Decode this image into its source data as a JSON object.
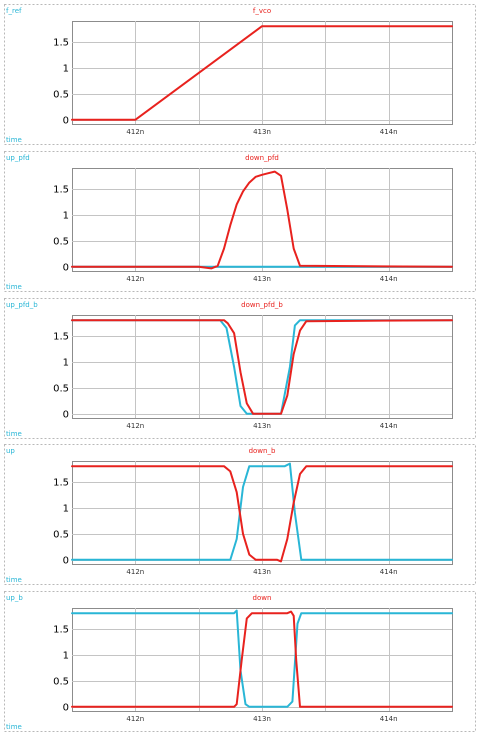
{
  "colors": {
    "cyan": "#29b6d6",
    "red": "#e8221e"
  },
  "chart_data": [
    {
      "type": "line",
      "left_label": "f_ref",
      "right_label": "f_vco",
      "xlabel": "time",
      "xlim": [
        411.5,
        414.5
      ],
      "ylim": [
        -0.08,
        1.9
      ],
      "xticks": [
        412,
        413,
        414
      ],
      "xtick_labels": [
        "412n",
        "413n",
        "414n"
      ],
      "yticks": [
        0,
        0.5,
        1,
        1.5
      ],
      "ytick_labels": [
        "0",
        "0.5",
        "1",
        "1.5"
      ],
      "series": [
        {
          "color": "#e8221e",
          "x": [
            411.5,
            412.0,
            413.0,
            414.5
          ],
          "y": [
            0,
            0,
            1.8,
            1.8
          ]
        }
      ]
    },
    {
      "type": "line",
      "left_label": "up_pfd",
      "right_label": "down_pfd",
      "xlabel": "time",
      "xlim": [
        411.5,
        414.5
      ],
      "ylim": [
        -0.08,
        1.9
      ],
      "xticks": [
        412,
        413,
        414
      ],
      "xtick_labels": [
        "412n",
        "413n",
        "414n"
      ],
      "yticks": [
        0,
        0.5,
        1,
        1.5
      ],
      "ytick_labels": [
        "0",
        "0.5",
        "1",
        "1.5"
      ],
      "series": [
        {
          "color": "#29b6d6",
          "x": [
            411.5,
            414.5
          ],
          "y": [
            0,
            0
          ]
        },
        {
          "color": "#e8221e",
          "x": [
            411.5,
            412.5,
            412.6,
            412.65,
            412.7,
            412.75,
            412.8,
            412.85,
            412.9,
            412.95,
            413.0,
            413.05,
            413.1,
            413.15,
            413.2,
            413.25,
            413.3,
            414.5
          ],
          "y": [
            0,
            0,
            -0.03,
            0.02,
            0.35,
            0.8,
            1.2,
            1.45,
            1.62,
            1.73,
            1.77,
            1.8,
            1.83,
            1.75,
            1.1,
            0.35,
            0.02,
            0
          ]
        }
      ]
    },
    {
      "type": "line",
      "left_label": "up_pfd_b",
      "right_label": "down_pfd_b",
      "xlabel": "time",
      "xlim": [
        411.5,
        414.5
      ],
      "ylim": [
        -0.08,
        1.9
      ],
      "xticks": [
        412,
        413,
        414
      ],
      "xtick_labels": [
        "412n",
        "413n",
        "414n"
      ],
      "yticks": [
        0,
        0.5,
        1,
        1.5
      ],
      "ytick_labels": [
        "0",
        "0.5",
        "1",
        "1.5"
      ],
      "series": [
        {
          "color": "#29b6d6",
          "x": [
            411.5,
            412.67,
            412.72,
            412.78,
            412.83,
            412.88,
            413.15,
            413.22,
            413.26,
            413.3,
            414.5
          ],
          "y": [
            1.8,
            1.8,
            1.65,
            0.9,
            0.15,
            0,
            0,
            0.9,
            1.7,
            1.8,
            1.8
          ]
        },
        {
          "color": "#e8221e",
          "x": [
            411.5,
            412.7,
            412.73,
            412.78,
            412.83,
            412.88,
            412.93,
            413.15,
            413.2,
            413.25,
            413.3,
            413.35,
            414.5
          ],
          "y": [
            1.8,
            1.8,
            1.74,
            1.55,
            0.8,
            0.2,
            0,
            0,
            0.35,
            1.15,
            1.6,
            1.78,
            1.8
          ]
        }
      ]
    },
    {
      "type": "line",
      "left_label": "up",
      "right_label": "down_b",
      "xlabel": "time",
      "xlim": [
        411.5,
        414.5
      ],
      "ylim": [
        -0.08,
        1.9
      ],
      "xticks": [
        412,
        413,
        414
      ],
      "xtick_labels": [
        "412n",
        "413n",
        "414n"
      ],
      "yticks": [
        0,
        0.5,
        1,
        1.5
      ],
      "ytick_labels": [
        "0",
        "0.5",
        "1",
        "1.5"
      ],
      "series": [
        {
          "color": "#29b6d6",
          "x": [
            411.5,
            412.75,
            412.8,
            412.85,
            412.9,
            412.95,
            413.18,
            413.22,
            413.26,
            413.31,
            414.5
          ],
          "y": [
            0,
            0,
            0.4,
            1.4,
            1.8,
            1.8,
            1.8,
            1.85,
            0.9,
            0,
            0
          ]
        },
        {
          "color": "#e8221e",
          "x": [
            411.5,
            412.7,
            412.75,
            412.8,
            412.85,
            412.9,
            412.95,
            413.12,
            413.15,
            413.2,
            413.25,
            413.3,
            413.35,
            414.5
          ],
          "y": [
            1.8,
            1.8,
            1.7,
            1.3,
            0.5,
            0.1,
            0,
            0,
            -0.03,
            0.4,
            1.1,
            1.65,
            1.8,
            1.8
          ]
        }
      ]
    },
    {
      "type": "line",
      "left_label": "up_b",
      "right_label": "down",
      "xlabel": "time",
      "xlim": [
        411.5,
        414.5
      ],
      "ylim": [
        -0.08,
        1.9
      ],
      "xticks": [
        412,
        413,
        414
      ],
      "xtick_labels": [
        "412n",
        "413n",
        "414n"
      ],
      "yticks": [
        0,
        0.5,
        1,
        1.5
      ],
      "ytick_labels": [
        "0",
        "0.5",
        "1",
        "1.5"
      ],
      "series": [
        {
          "color": "#29b6d6",
          "x": [
            411.5,
            412.78,
            412.8,
            412.83,
            412.87,
            412.9,
            413.2,
            413.24,
            413.28,
            413.31,
            414.5
          ],
          "y": [
            1.8,
            1.8,
            1.85,
            0.7,
            0.05,
            0,
            0,
            0.1,
            1.6,
            1.8,
            1.8
          ]
        },
        {
          "color": "#e8221e",
          "x": [
            411.5,
            412.78,
            412.8,
            412.84,
            412.88,
            412.92,
            413.2,
            413.23,
            413.25,
            413.27,
            413.3,
            414.5
          ],
          "y": [
            0,
            0,
            0.05,
            0.9,
            1.7,
            1.8,
            1.8,
            1.83,
            1.75,
            0.9,
            0,
            0
          ]
        }
      ]
    }
  ]
}
